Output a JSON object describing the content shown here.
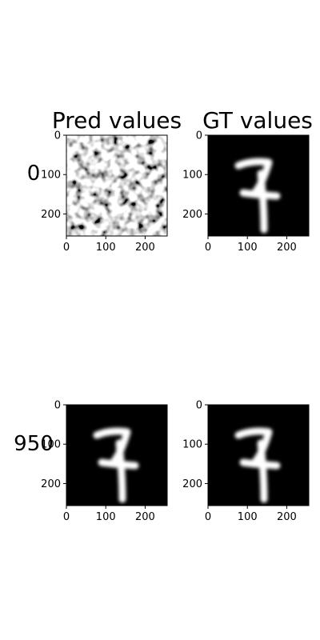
{
  "columns": [
    {
      "title": "Pred values"
    },
    {
      "title": "GT values"
    }
  ],
  "rows": [
    {
      "label": "0",
      "pred": "noise",
      "gt": "digit-7"
    },
    {
      "label": "950",
      "pred": "digit-7",
      "gt": "digit-7"
    }
  ],
  "axes": {
    "xticks": [
      "0",
      "100",
      "200"
    ],
    "yticks": [
      "0",
      "100",
      "200"
    ]
  }
}
